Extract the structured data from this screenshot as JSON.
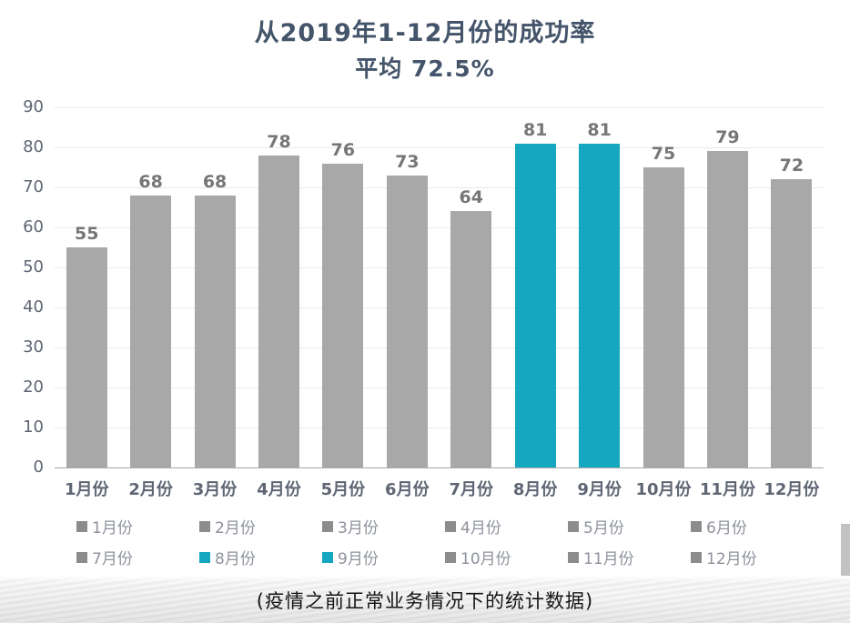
{
  "header": {
    "title": "从2019年1-12月份的成功率",
    "subtitle": "平均 72.5%"
  },
  "caption": "(疫情之前正常业务情况下的统计数据)",
  "colors": {
    "bar_gray": "#a8a8a8",
    "bar_teal": "#15a6c0",
    "gridline": "#e9e9e9",
    "axis_line": "#a6a6a6",
    "value_label": "#767676",
    "tick_label": "#5f6673",
    "title_text": "#44546a",
    "legend_text": "#8d929b"
  },
  "chart_data": {
    "type": "bar",
    "title": "从2019年1-12月份的成功率",
    "subtitle": "平均 72.5%",
    "categories": [
      "1月份",
      "2月份",
      "3月份",
      "4月份",
      "5月份",
      "6月份",
      "7月份",
      "8月份",
      "9月份",
      "10月份",
      "11月份",
      "12月份"
    ],
    "values": [
      55,
      68,
      68,
      78,
      76,
      73,
      64,
      81,
      81,
      75,
      79,
      72
    ],
    "highlighted_categories": [
      "8月份",
      "9月份"
    ],
    "average": 72.5,
    "xlabel": "",
    "ylabel": "",
    "ylim": [
      0,
      90
    ],
    "yticks": [
      0,
      10,
      20,
      30,
      40,
      50,
      60,
      70,
      80,
      90
    ],
    "grid": true,
    "legend_position": "bottom",
    "legend_rows": [
      [
        "1月份",
        "2月份",
        "3月份",
        "4月份",
        "5月份",
        "6月份"
      ],
      [
        "7月份",
        "8月份",
        "9月份",
        "10月份",
        "11月份",
        "12月份"
      ]
    ]
  }
}
